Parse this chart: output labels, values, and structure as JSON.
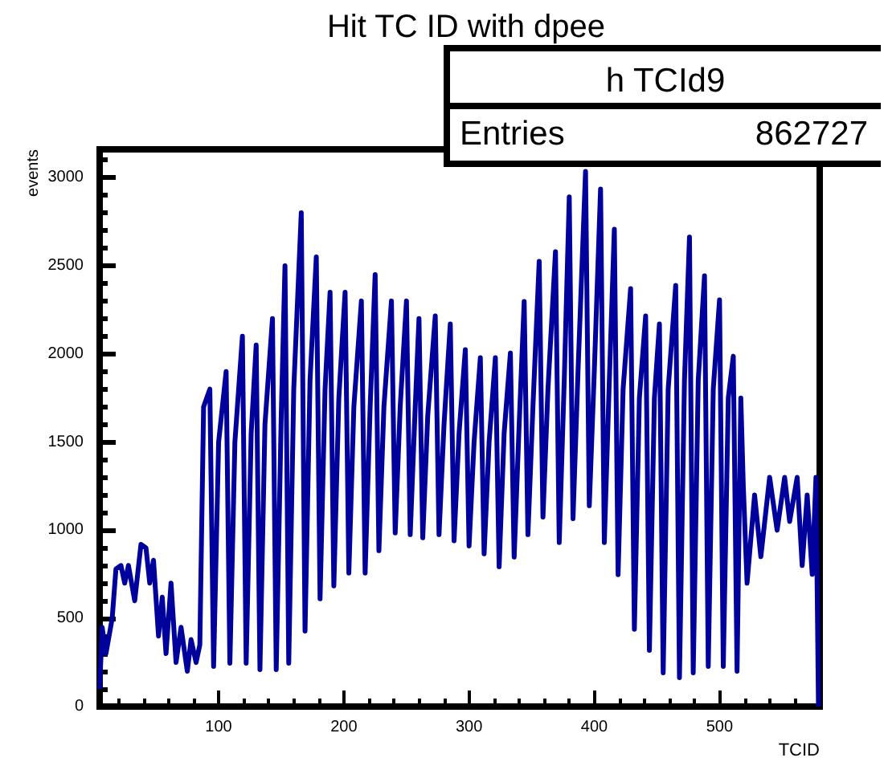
{
  "chart_data": {
    "type": "line",
    "title": "Hit TC ID with dpee",
    "xlabel": "TCID",
    "ylabel": "events",
    "annotations": [
      "h TCId9",
      "Entries",
      "862727"
    ],
    "color": "#00009c",
    "marker": "none",
    "xlim": [
      5,
      580
    ],
    "ylim": [
      0,
      3160
    ],
    "xticks": [
      100,
      200,
      300,
      400,
      500
    ],
    "yticks": [
      0,
      500,
      1000,
      1500,
      2000,
      2500,
      3000
    ],
    "x": [
      5,
      7,
      10,
      15,
      18,
      22,
      25,
      28,
      33,
      38,
      42,
      45,
      48,
      52,
      55,
      58,
      62,
      66,
      70,
      75,
      78,
      82,
      85,
      88,
      93,
      96,
      100,
      106,
      109,
      113,
      119,
      122,
      126,
      130,
      133,
      137,
      143,
      146,
      150,
      153,
      156,
      160,
      166,
      169,
      173,
      178,
      181,
      185,
      189,
      192,
      196,
      201,
      204,
      208,
      214,
      217,
      221,
      225,
      228,
      232,
      238,
      241,
      245,
      250,
      253,
      257,
      260,
      263,
      267,
      273,
      276,
      280,
      285,
      288,
      292,
      297,
      300,
      304,
      309,
      312,
      316,
      321,
      324,
      328,
      333,
      336,
      340,
      344,
      347,
      351,
      356,
      359,
      363,
      369,
      372,
      376,
      380,
      383,
      387,
      393,
      396,
      400,
      405,
      408,
      412,
      416,
      419,
      423,
      429,
      432,
      436,
      441,
      444,
      448,
      452,
      455,
      459,
      465,
      468,
      472,
      476,
      479,
      483,
      488,
      491,
      495,
      500,
      503,
      507,
      511,
      514,
      517,
      519,
      522,
      528,
      533,
      540,
      546,
      552,
      556,
      562,
      566,
      570,
      574,
      577,
      579
    ],
    "values": [
      100,
      450,
      300,
      500,
      780,
      800,
      700,
      800,
      600,
      920,
      900,
      700,
      830,
      400,
      620,
      300,
      700,
      250,
      450,
      200,
      380,
      250,
      350,
      1700,
      1800,
      228,
      1500,
      1900,
      246,
      1500,
      2100,
      246,
      1550,
      2050,
      210,
      1600,
      2200,
      210,
      1650,
      2500,
      246,
      1800,
      2800,
      428,
      1850,
      2550,
      611,
      1800,
      2350,
      684,
      1750,
      2350,
      757,
      1700,
      2300,
      757,
      1700,
      2450,
      884,
      1700,
      2300,
      985,
      1700,
      2300,
      975,
      1700,
      2200,
      957,
      1650,
      2215,
      975,
      1600,
      2170,
      940,
      1550,
      2024,
      911,
      1500,
      1978,
      866,
      1500,
      1978,
      793,
      1550,
      2005,
      848,
      1600,
      2297,
      975,
      1700,
      2525,
      1075,
      1800,
      2580,
      930,
      1850,
      2890,
      1066,
      1900,
      3035,
      1139,
      1900,
      2935,
      930,
      1850,
      2707,
      748,
      1800,
      2370,
      438,
      1750,
      2215,
      319,
      1750,
      2170,
      191,
      1800,
      2388,
      164,
      1850,
      2662,
      191,
      1850,
      2443,
      228,
      1800,
      2306,
      228,
      1750,
      1987,
      200,
      1750,
      1250,
      700,
      1200,
      850,
      1300,
      1000,
      1300,
      1050,
      1300,
      800,
      1200,
      750,
      1300,
      0
    ]
  }
}
